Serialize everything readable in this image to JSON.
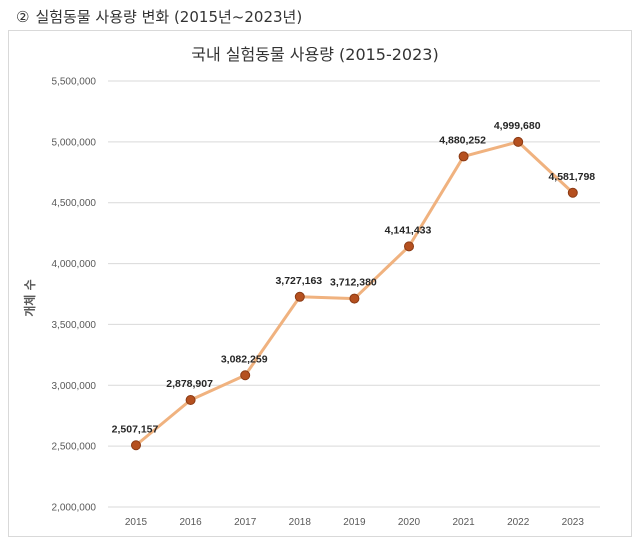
{
  "heading": {
    "marker": "②",
    "text": "실험동물 사용량 변화 (2015년~2023년)"
  },
  "chart_data": {
    "type": "line",
    "title": "국내 실험동물 사용량 (2015-2023)",
    "xlabel": "",
    "ylabel": "개체 수",
    "categories": [
      "2015",
      "2016",
      "2017",
      "2018",
      "2019",
      "2020",
      "2021",
      "2022",
      "2023"
    ],
    "values": [
      2507157,
      2878907,
      3082259,
      3727163,
      3712380,
      4141433,
      4880252,
      4999680,
      4581798
    ],
    "data_labels": [
      "2,507,157",
      "2,878,907",
      "3,082,259",
      "3,727,163",
      "3,712,380",
      "4,141,433",
      "4,880,252",
      "4,999,680",
      "4,581,798"
    ],
    "ylim": [
      2000000,
      5500000
    ],
    "yticks": [
      2000000,
      2500000,
      3000000,
      3500000,
      4000000,
      4500000,
      5000000,
      5500000
    ],
    "ytick_labels": [
      "2,000,000",
      "2,500,000",
      "3,000,000",
      "3,500,000",
      "4,000,000",
      "4,500,000",
      "5,000,000",
      "5,500,000"
    ],
    "grid": true,
    "legend": "none",
    "colors": {
      "line": "#f0b27f",
      "marker": "#b5501f",
      "marker_edge": "#8a3a14",
      "grid": "#d9d9d9"
    }
  }
}
